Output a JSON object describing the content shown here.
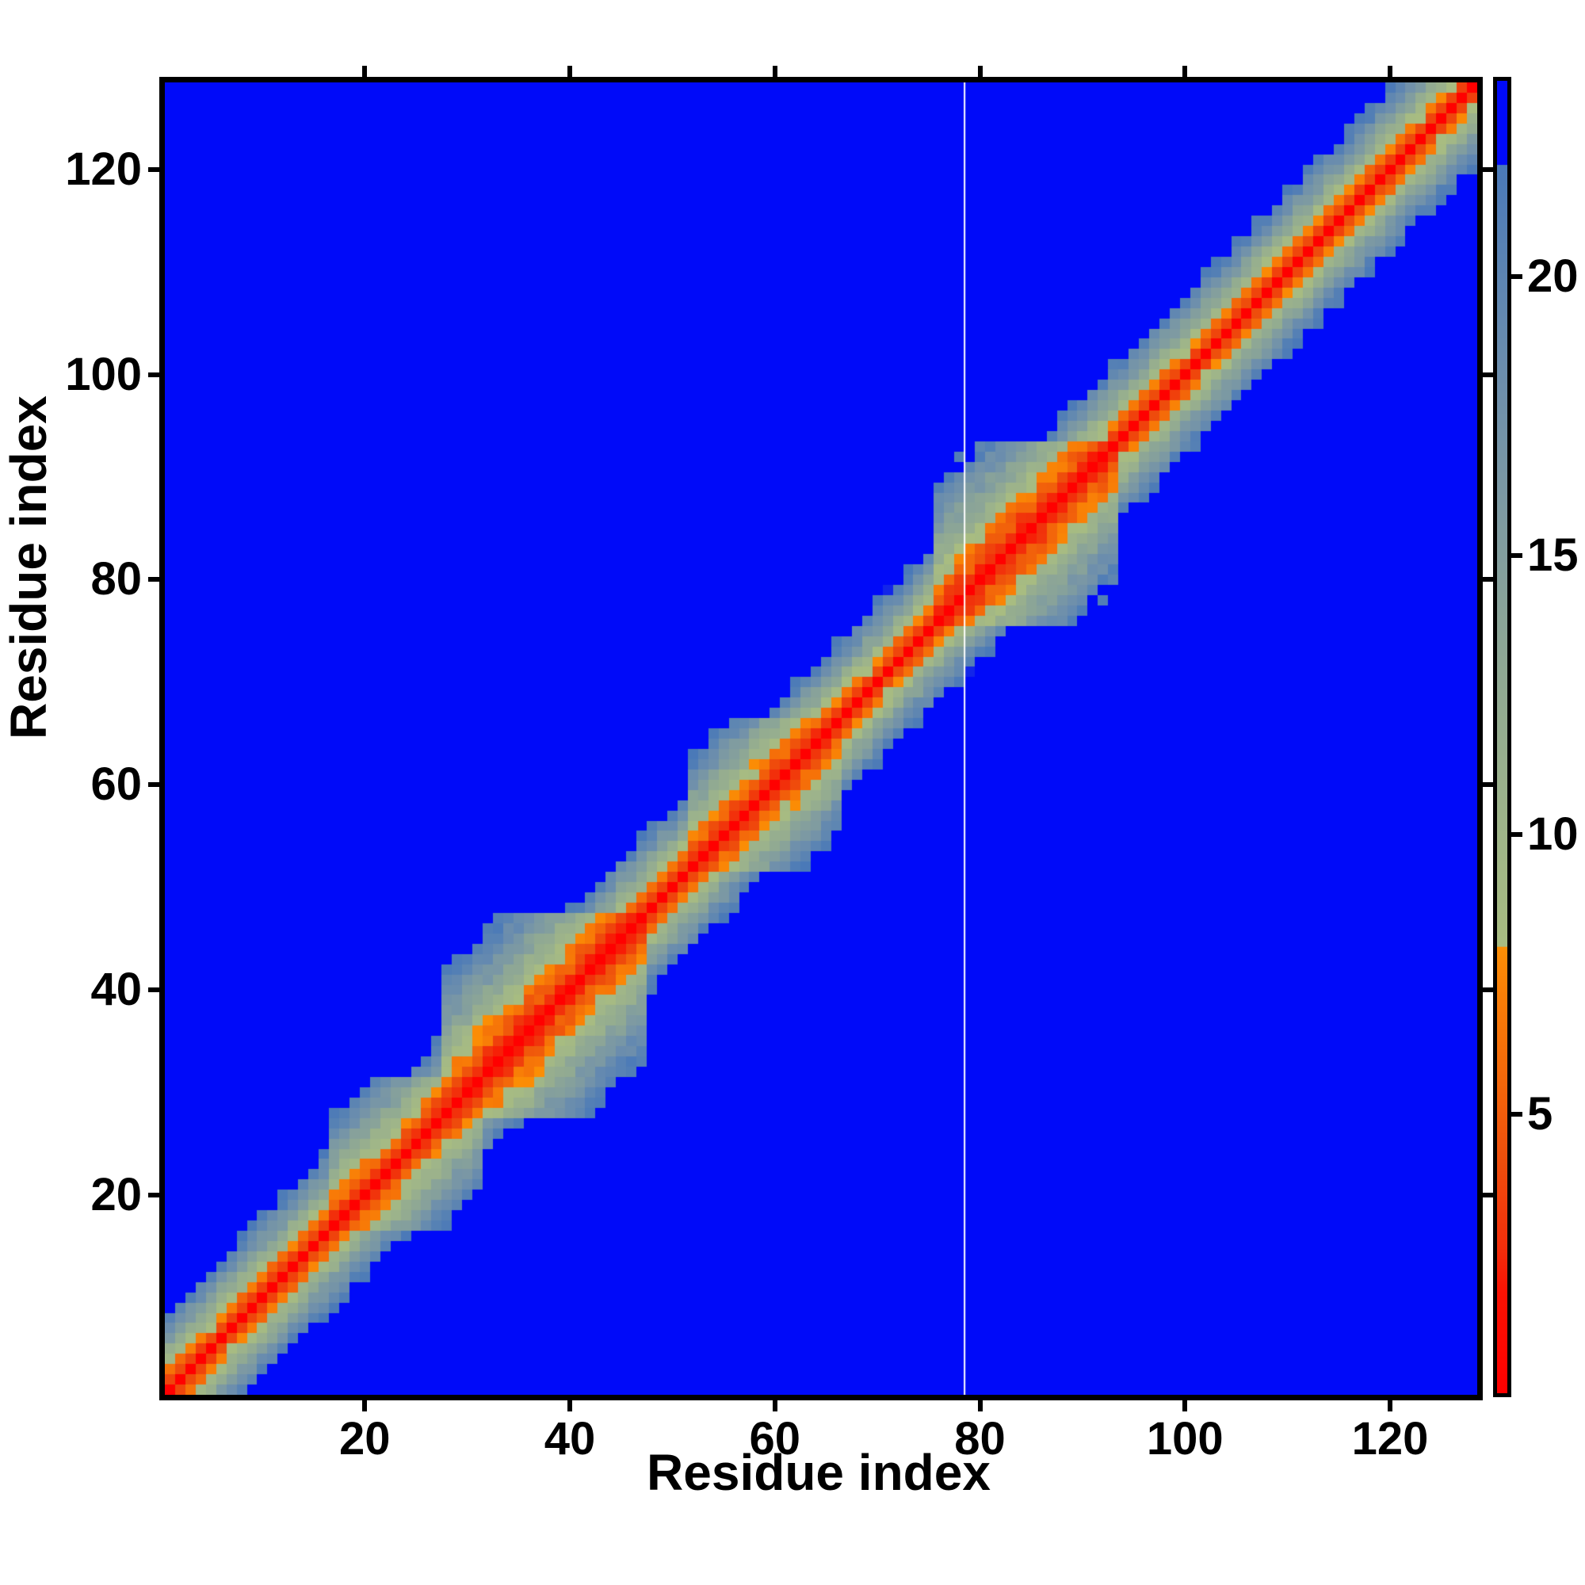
{
  "figure": {
    "background_color": "#ffffff",
    "title": ""
  },
  "chart_data": {
    "type": "heatmap",
    "title": "",
    "xlabel": "Residue index",
    "ylabel": "Residue index",
    "n_residues": 128,
    "x_range": [
      1,
      128
    ],
    "y_range": [
      1,
      128
    ],
    "x_ticks": [
      20,
      40,
      60,
      80,
      100,
      120
    ],
    "y_ticks": [
      20,
      40,
      60,
      80,
      100,
      120
    ],
    "grid": false,
    "legend": "colorbar-right",
    "colorbar": {
      "ticks": [
        5,
        10,
        15,
        20
      ],
      "tick_labels": [
        "5",
        "10",
        "15",
        "20"
      ],
      "vmin": 0,
      "vmax": 23.5,
      "orientation": "vertical",
      "stops": [
        {
          "v": 0.0,
          "c": "#ff0000"
        },
        {
          "v": 1.8,
          "c": "#fa1203"
        },
        {
          "v": 2.6,
          "c": "#f22e0b"
        },
        {
          "v": 4.2,
          "c": "#ee4f0c"
        },
        {
          "v": 5.6,
          "c": "#f3670a"
        },
        {
          "v": 7.0,
          "c": "#f87c07"
        },
        {
          "v": 7.99,
          "c": "#fb8e05"
        },
        {
          "v": 8.0,
          "c": "#a8bc81"
        },
        {
          "v": 10.0,
          "c": "#9fb589"
        },
        {
          "v": 12.0,
          "c": "#94ac90"
        },
        {
          "v": 14.0,
          "c": "#89a399"
        },
        {
          "v": 16.0,
          "c": "#7c99a3"
        },
        {
          "v": 18.0,
          "c": "#6e8fac"
        },
        {
          "v": 20.0,
          "c": "#5d85b2"
        },
        {
          "v": 21.99,
          "c": "#4a79b8"
        },
        {
          "v": 22.0,
          "c": "#000af9"
        },
        {
          "v": 23.5,
          "c": "#000af9"
        }
      ]
    },
    "value_semantics": "inter-residue distance; red = closest (main diagonal), orange < 8, sage-green 8-13, steel-blue 13-22, bright blue = beyond cutoff (> 22)",
    "matrix_model": {
      "description": "Symmetric 128x128 residue-residue distance map: red core along the main diagonal (|i-j|<=1), orange fringe (|i-j|~2-3), sage-green then steel-blue bands, uniform blue far from diagonal; band widens into orange blobs at compact (folded) segments.",
      "base_scale": 3.8,
      "base_exponent": 0.85,
      "noise_amplitude": 2.8,
      "diagonal_noise_damping": 0.3,
      "compact_regions": [
        {
          "start": 17,
          "end": 31,
          "factor": 0.78
        },
        {
          "start": 28,
          "end": 47,
          "factor": 0.62
        },
        {
          "start": 52,
          "end": 66,
          "factor": 0.75
        },
        {
          "start": 76,
          "end": 93,
          "factor": 0.63
        }
      ],
      "white_seam_column": 79
    }
  }
}
